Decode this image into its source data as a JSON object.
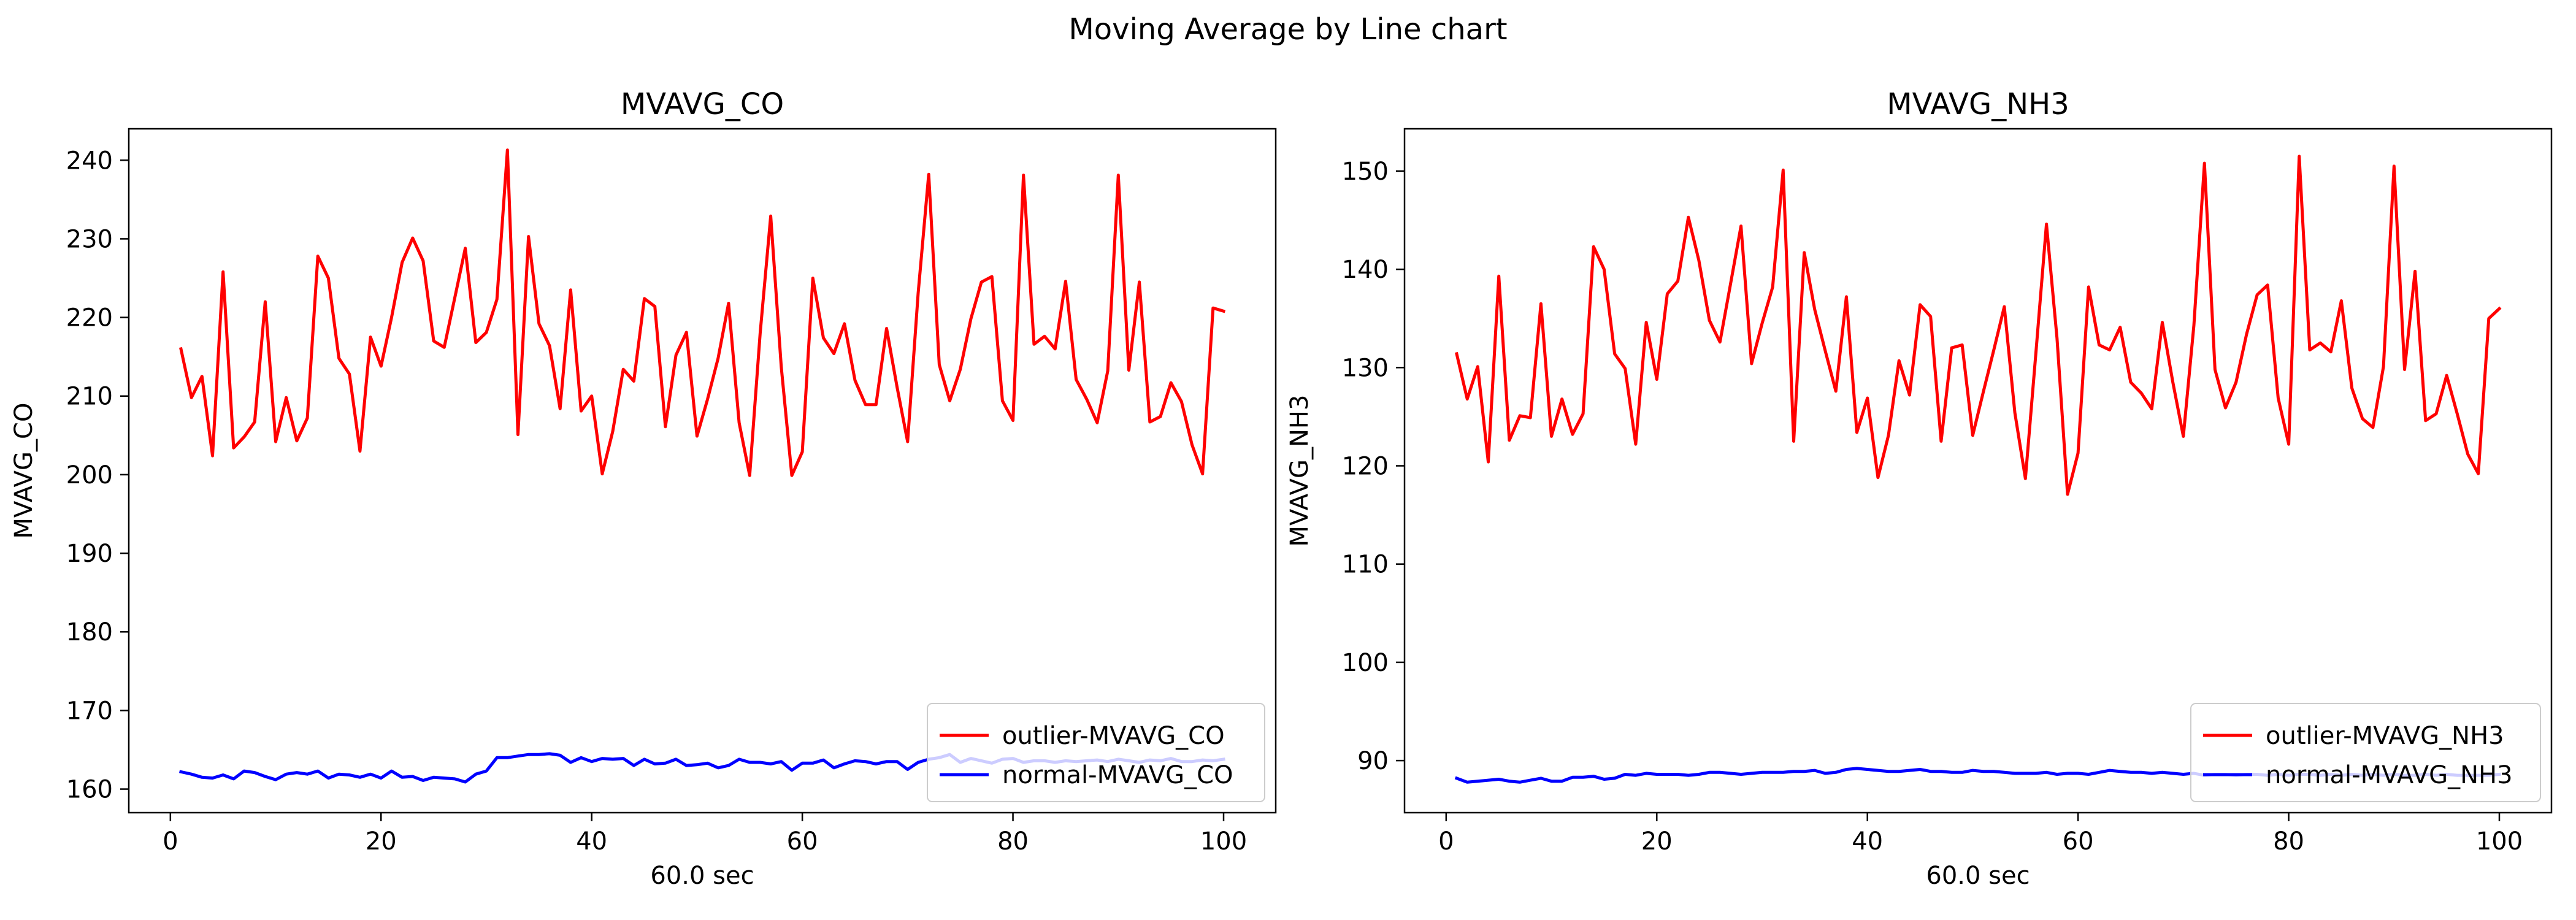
{
  "figure": {
    "suptitle": "Moving Average by Line chart"
  },
  "chart_data": [
    {
      "type": "line",
      "title": "MVAVG_CO",
      "xlabel": "60.0 sec",
      "ylabel": "MVAVG_CO",
      "xlim": [
        -3.95,
        104.95
      ],
      "ylim": [
        157,
        244
      ],
      "xticks": [
        0,
        20,
        40,
        60,
        80,
        100
      ],
      "yticks": [
        160,
        170,
        180,
        190,
        200,
        210,
        220,
        230,
        240
      ],
      "legend_position": "lower right",
      "grid": false,
      "x": {
        "start": 1,
        "end": 100,
        "step": 1
      },
      "series": [
        {
          "name": "outlier-MVAVG_CO",
          "color": "#ff0000",
          "values": [
            216.0,
            209.8,
            212.5,
            202.4,
            225.8,
            203.4,
            204.8,
            206.7,
            222.0,
            204.2,
            209.8,
            204.3,
            207.2,
            227.8,
            225.0,
            214.8,
            212.8,
            203.0,
            217.5,
            213.8,
            220.0,
            227.0,
            230.1,
            227.2,
            217.0,
            216.2,
            222.5,
            228.8,
            216.8,
            218.1,
            222.3,
            241.3,
            205.1,
            230.3,
            219.2,
            216.4,
            208.4,
            223.5,
            208.1,
            210.0,
            200.1,
            205.5,
            213.4,
            211.9,
            222.4,
            221.4,
            206.1,
            215.2,
            218.1,
            204.9,
            209.6,
            214.8,
            221.8,
            206.6,
            199.9,
            218.0,
            232.9,
            213.7,
            199.9,
            202.9,
            225.0,
            217.4,
            215.4,
            219.2,
            212.0,
            208.9,
            208.9,
            218.6,
            211.1,
            204.2,
            223.1,
            238.2,
            214.0,
            209.4,
            213.4,
            219.8,
            224.5,
            225.2,
            209.4,
            206.9,
            238.1,
            216.6,
            217.6,
            216.0,
            224.6,
            212.1,
            209.6,
            206.6,
            213.2,
            238.1,
            213.3,
            224.5,
            206.7,
            207.4,
            211.7,
            209.3,
            203.8,
            200.1,
            221.2,
            220.8
          ]
        },
        {
          "name": "normal-MVAVG_CO",
          "color": "#0000ff",
          "values": [
            162.2,
            161.9,
            161.5,
            161.4,
            161.8,
            161.3,
            162.3,
            162.1,
            161.6,
            161.2,
            161.9,
            162.1,
            161.9,
            162.3,
            161.4,
            161.9,
            161.8,
            161.5,
            161.9,
            161.4,
            162.3,
            161.5,
            161.6,
            161.1,
            161.5,
            161.4,
            161.3,
            160.9,
            161.9,
            162.3,
            164.0,
            164.0,
            164.2,
            164.4,
            164.4,
            164.5,
            164.3,
            163.4,
            164.0,
            163.5,
            163.9,
            163.8,
            163.9,
            163.0,
            163.8,
            163.2,
            163.3,
            163.8,
            163.0,
            163.1,
            163.3,
            162.7,
            163.0,
            163.8,
            163.4,
            163.4,
            163.2,
            163.5,
            162.4,
            163.3,
            163.3,
            163.7,
            162.7,
            163.2,
            163.6,
            163.5,
            163.2,
            163.5,
            163.5,
            162.5,
            163.4,
            163.8,
            164.0,
            164.4,
            163.4,
            163.9,
            163.6,
            163.3,
            163.8,
            163.9,
            163.4,
            163.6,
            163.6,
            163.4,
            163.6,
            163.5,
            163.6,
            163.7,
            163.5,
            163.8,
            163.6,
            163.4,
            163.7,
            163.6,
            163.9,
            163.5,
            163.5,
            163.7,
            163.6,
            163.8
          ]
        }
      ]
    },
    {
      "type": "line",
      "title": "MVAVG_NH3",
      "xlabel": "60.0 sec",
      "ylabel": "MVAVG_NH3",
      "xlim": [
        -3.95,
        104.95
      ],
      "ylim": [
        84.7,
        154.3
      ],
      "xticks": [
        0,
        20,
        40,
        60,
        80,
        100
      ],
      "yticks": [
        90,
        100,
        110,
        120,
        130,
        140,
        150
      ],
      "legend_position": "lower right",
      "grid": false,
      "x": {
        "start": 1,
        "end": 100,
        "step": 1
      },
      "series": [
        {
          "name": "outlier-MVAVG_NH3",
          "color": "#ff0000",
          "values": [
            131.4,
            126.8,
            130.1,
            120.4,
            139.3,
            122.6,
            125.1,
            124.9,
            136.5,
            123.0,
            126.8,
            123.2,
            125.3,
            142.3,
            140.0,
            131.4,
            129.9,
            122.2,
            134.6,
            128.8,
            137.5,
            138.8,
            145.3,
            140.9,
            134.8,
            132.6,
            138.5,
            144.4,
            130.4,
            134.5,
            138.2,
            150.1,
            122.5,
            141.7,
            135.9,
            131.7,
            127.6,
            137.2,
            123.4,
            126.9,
            118.8,
            123.1,
            130.7,
            127.2,
            136.4,
            135.2,
            122.5,
            132.0,
            132.3,
            123.1,
            127.5,
            131.8,
            136.2,
            125.4,
            118.7,
            131.5,
            144.6,
            133.0,
            117.1,
            121.3,
            138.2,
            132.3,
            131.8,
            134.1,
            128.5,
            127.4,
            125.8,
            134.6,
            128.5,
            123.0,
            134.3,
            150.8,
            129.8,
            125.9,
            128.5,
            133.4,
            137.4,
            138.4,
            126.9,
            122.2,
            151.5,
            131.8,
            132.5,
            131.6,
            136.8,
            127.9,
            124.8,
            123.9,
            130.1,
            150.5,
            129.8,
            139.8,
            124.6,
            125.3,
            129.2,
            125.3,
            121.2,
            119.2,
            135.0,
            136.0
          ]
        },
        {
          "name": "normal-MVAVG_NH3",
          "color": "#0000ff",
          "values": [
            88.2,
            87.8,
            87.9,
            88.0,
            88.1,
            87.9,
            87.8,
            88.0,
            88.2,
            87.9,
            87.9,
            88.3,
            88.3,
            88.4,
            88.1,
            88.2,
            88.6,
            88.5,
            88.7,
            88.6,
            88.6,
            88.6,
            88.5,
            88.6,
            88.8,
            88.8,
            88.7,
            88.6,
            88.7,
            88.8,
            88.8,
            88.8,
            88.9,
            88.9,
            89.0,
            88.7,
            88.8,
            89.1,
            89.2,
            89.1,
            89.0,
            88.9,
            88.9,
            89.0,
            89.1,
            88.9,
            88.9,
            88.8,
            88.8,
            89.0,
            88.9,
            88.9,
            88.8,
            88.7,
            88.7,
            88.7,
            88.8,
            88.6,
            88.7,
            88.7,
            88.6,
            88.8,
            89.0,
            88.9,
            88.8,
            88.8,
            88.7,
            88.8,
            88.7,
            88.6,
            88.7,
            88.5,
            88.6,
            88.6,
            88.5,
            88.6,
            88.6,
            88.5,
            88.6,
            88.5,
            88.6,
            88.6,
            88.5,
            88.6,
            88.5,
            88.6,
            88.5,
            88.6,
            88.5,
            88.6,
            88.5,
            88.5,
            88.6,
            88.5,
            88.6,
            88.5,
            88.5,
            88.5,
            88.5,
            88.6
          ]
        }
      ]
    }
  ]
}
